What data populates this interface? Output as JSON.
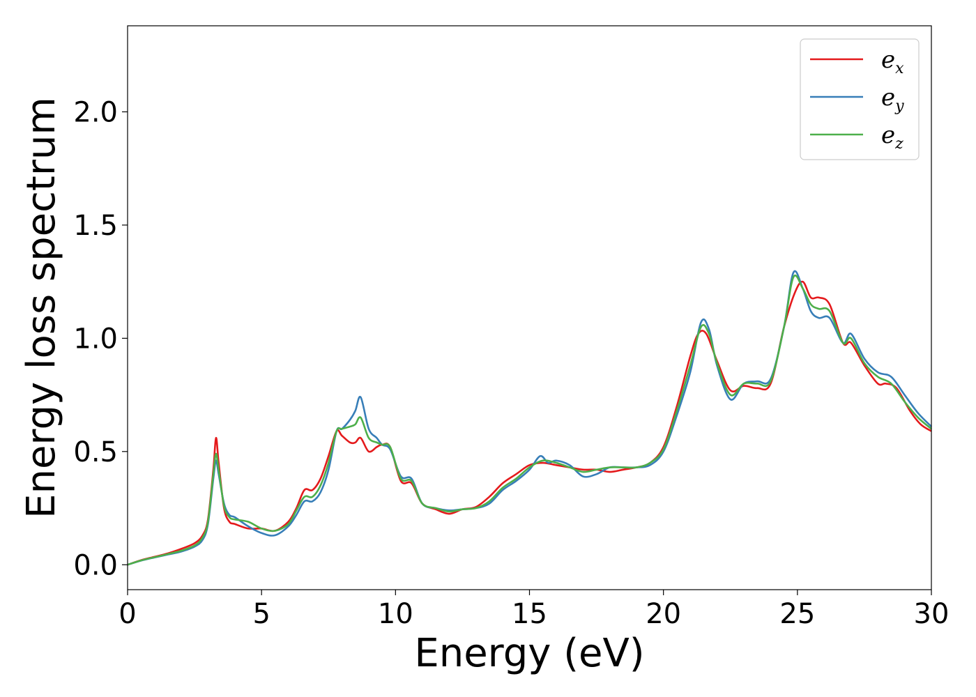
{
  "chart_data": {
    "type": "line",
    "title": "",
    "xlabel": "Energy (eV)",
    "ylabel": "Energy loss spectrum",
    "xlim": [
      0,
      30
    ],
    "ylim": [
      -0.11,
      2.38
    ],
    "xticks": [
      "0",
      "5",
      "10",
      "15",
      "20",
      "25",
      "30"
    ],
    "yticks": [
      "0.0",
      "0.5",
      "1.0",
      "1.5",
      "2.0"
    ],
    "grid": false,
    "legend_position": "top-right",
    "series": [
      {
        "name": "e_x",
        "label_base": "e",
        "label_sub": "x",
        "color": "#e41a1c",
        "x": [
          0,
          0.5,
          1,
          1.5,
          2,
          2.5,
          2.8,
          3.0,
          3.2,
          3.3,
          3.4,
          3.6,
          3.8,
          4.0,
          4.5,
          5,
          5.5,
          6,
          6.3,
          6.6,
          6.9,
          7.2,
          7.5,
          7.8,
          8.0,
          8.3,
          8.5,
          8.7,
          9.0,
          9.3,
          9.5,
          9.8,
          10.2,
          10.6,
          11,
          11.5,
          12,
          12.5,
          13,
          13.5,
          14,
          14.5,
          15,
          15.5,
          16,
          16.5,
          17,
          17.5,
          18,
          18.5,
          19,
          19.5,
          20,
          20.5,
          21,
          21.3,
          21.6,
          22,
          22.5,
          23,
          23.5,
          24,
          24.5,
          24.9,
          25.2,
          25.5,
          25.8,
          26.2,
          26.7,
          27.0,
          27.5,
          28,
          28.3,
          28.7,
          29.2,
          29.6,
          30
        ],
        "y": [
          0.0,
          0.02,
          0.035,
          0.05,
          0.07,
          0.095,
          0.13,
          0.2,
          0.42,
          0.56,
          0.45,
          0.25,
          0.19,
          0.18,
          0.16,
          0.16,
          0.15,
          0.19,
          0.25,
          0.33,
          0.33,
          0.38,
          0.48,
          0.59,
          0.57,
          0.54,
          0.54,
          0.56,
          0.5,
          0.52,
          0.53,
          0.52,
          0.37,
          0.36,
          0.27,
          0.245,
          0.225,
          0.245,
          0.255,
          0.3,
          0.36,
          0.4,
          0.44,
          0.45,
          0.44,
          0.43,
          0.42,
          0.42,
          0.41,
          0.42,
          0.43,
          0.45,
          0.52,
          0.7,
          0.92,
          1.02,
          1.02,
          0.9,
          0.77,
          0.79,
          0.78,
          0.8,
          1.05,
          1.2,
          1.25,
          1.18,
          1.18,
          1.15,
          0.98,
          0.98,
          0.88,
          0.8,
          0.8,
          0.78,
          0.68,
          0.62,
          0.59
        ]
      },
      {
        "name": "e_y",
        "label_base": "e",
        "label_sub": "y",
        "color": "#377eb8",
        "x": [
          0,
          0.5,
          1,
          1.5,
          2,
          2.5,
          2.8,
          3.0,
          3.2,
          3.3,
          3.4,
          3.6,
          3.8,
          4.0,
          4.5,
          5,
          5.5,
          6,
          6.3,
          6.6,
          6.9,
          7.2,
          7.5,
          7.8,
          8.0,
          8.3,
          8.5,
          8.7,
          9.0,
          9.3,
          9.5,
          9.8,
          10.2,
          10.6,
          11,
          11.5,
          12,
          12.5,
          13,
          13.5,
          14,
          14.5,
          15,
          15.4,
          15.7,
          16,
          16.5,
          17,
          17.5,
          18,
          18.5,
          19,
          19.5,
          20,
          20.5,
          21,
          21.4,
          21.7,
          22,
          22.5,
          23,
          23.5,
          24,
          24.5,
          24.85,
          25.2,
          25.5,
          25.8,
          26.2,
          26.7,
          27.0,
          27.5,
          28,
          28.5,
          29,
          29.5,
          30
        ],
        "y": [
          0.0,
          0.018,
          0.032,
          0.045,
          0.058,
          0.08,
          0.11,
          0.18,
          0.38,
          0.46,
          0.4,
          0.27,
          0.22,
          0.21,
          0.17,
          0.14,
          0.13,
          0.17,
          0.22,
          0.28,
          0.28,
          0.32,
          0.42,
          0.59,
          0.6,
          0.64,
          0.68,
          0.74,
          0.6,
          0.56,
          0.53,
          0.51,
          0.39,
          0.38,
          0.27,
          0.25,
          0.24,
          0.245,
          0.25,
          0.27,
          0.33,
          0.37,
          0.42,
          0.48,
          0.45,
          0.46,
          0.44,
          0.39,
          0.4,
          0.43,
          0.43,
          0.43,
          0.44,
          0.5,
          0.66,
          0.85,
          1.07,
          1.04,
          0.88,
          0.73,
          0.8,
          0.81,
          0.82,
          1.05,
          1.29,
          1.22,
          1.12,
          1.09,
          1.09,
          0.98,
          1.02,
          0.91,
          0.85,
          0.83,
          0.75,
          0.67,
          0.61
        ]
      },
      {
        "name": "e_z",
        "label_base": "e",
        "label_sub": "z",
        "color": "#4daf4a",
        "x": [
          0,
          0.5,
          1,
          1.5,
          2,
          2.5,
          2.8,
          3.0,
          3.2,
          3.3,
          3.4,
          3.6,
          3.8,
          4.0,
          4.5,
          5,
          5.5,
          6,
          6.3,
          6.6,
          6.9,
          7.2,
          7.5,
          7.8,
          8.0,
          8.3,
          8.5,
          8.7,
          9.0,
          9.3,
          9.5,
          9.8,
          10.2,
          10.6,
          11,
          11.5,
          12,
          12.5,
          13,
          13.5,
          14,
          14.5,
          15,
          15.5,
          16,
          16.5,
          17,
          17.5,
          18,
          18.5,
          19,
          19.5,
          20,
          20.5,
          21,
          21.4,
          21.7,
          22,
          22.5,
          23,
          23.5,
          24,
          24.5,
          24.85,
          25.2,
          25.5,
          25.8,
          26.2,
          26.7,
          27.0,
          27.5,
          28,
          28.5,
          29,
          29.5,
          30
        ],
        "y": [
          0.0,
          0.019,
          0.033,
          0.047,
          0.062,
          0.085,
          0.12,
          0.19,
          0.4,
          0.49,
          0.42,
          0.26,
          0.21,
          0.2,
          0.19,
          0.16,
          0.15,
          0.18,
          0.24,
          0.3,
          0.3,
          0.35,
          0.45,
          0.59,
          0.6,
          0.61,
          0.62,
          0.65,
          0.56,
          0.54,
          0.53,
          0.52,
          0.38,
          0.37,
          0.27,
          0.25,
          0.235,
          0.245,
          0.25,
          0.28,
          0.34,
          0.38,
          0.43,
          0.46,
          0.45,
          0.43,
          0.41,
          0.42,
          0.43,
          0.43,
          0.43,
          0.45,
          0.51,
          0.68,
          0.88,
          1.05,
          1.02,
          0.89,
          0.75,
          0.8,
          0.8,
          0.81,
          1.05,
          1.27,
          1.22,
          1.15,
          1.13,
          1.12,
          0.98,
          1.0,
          0.89,
          0.83,
          0.8,
          0.72,
          0.65,
          0.6
        ]
      }
    ]
  }
}
